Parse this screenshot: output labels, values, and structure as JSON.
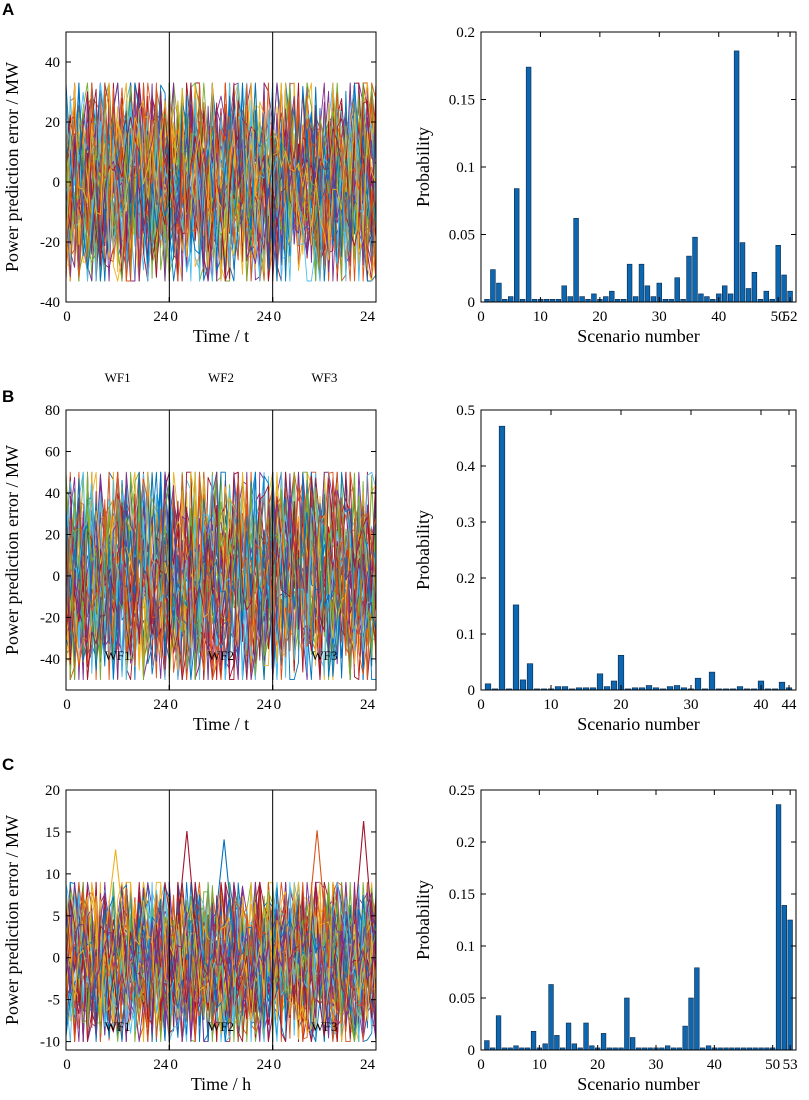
{
  "chart_data": [
    {
      "id": "A-left",
      "panel": "A",
      "type": "line",
      "title": "",
      "xlabel": "Time / t",
      "ylabel": "Power prediction error / MW",
      "ylim": [
        -40,
        50
      ],
      "yticks": [
        -40,
        -20,
        0,
        20,
        40
      ],
      "ytick_labels": [
        "-40",
        "-20",
        "0",
        "20",
        "40"
      ],
      "segment_labels": [
        "WF1",
        "WF2",
        "WF3"
      ],
      "x_tick_labels": [
        "0",
        "24",
        "0",
        "24",
        "0",
        "24"
      ],
      "series_summary": {
        "count": 52,
        "points_per_segment": 25,
        "approx_range": [
          -33,
          33
        ]
      }
    },
    {
      "id": "A-right",
      "panel": "A",
      "type": "bar",
      "title": "",
      "xlabel": "Scenario number",
      "ylabel": "Probability",
      "xlim": [
        0,
        53
      ],
      "ylim": [
        0,
        0.2
      ],
      "yticks": [
        0,
        0.05,
        0.1,
        0.15,
        0.2
      ],
      "ytick_labels": [
        "0",
        "0.05",
        "0.1",
        "0.15",
        "0.2"
      ],
      "xticks": [
        0,
        10,
        20,
        30,
        40,
        50,
        52
      ],
      "xtick_labels": [
        "0",
        "10",
        "20",
        "30",
        "40",
        "50",
        "52"
      ],
      "values": [
        0.002,
        0.024,
        0.014,
        0.002,
        0.004,
        0.084,
        0.002,
        0.174,
        0.002,
        0.002,
        0.002,
        0.002,
        0.002,
        0.012,
        0.004,
        0.062,
        0.004,
        0.002,
        0.006,
        0.002,
        0.004,
        0.008,
        0.002,
        0.002,
        0.028,
        0.004,
        0.028,
        0.012,
        0.004,
        0.014,
        0.002,
        0.002,
        0.018,
        0.002,
        0.034,
        0.048,
        0.006,
        0.004,
        0.002,
        0.006,
        0.012,
        0.006,
        0.186,
        0.044,
        0.01,
        0.022,
        0.002,
        0.008,
        0.002,
        0.042,
        0.02,
        0.008
      ]
    },
    {
      "id": "B-left",
      "panel": "B",
      "type": "line",
      "title": "",
      "xlabel": "Time / t",
      "ylabel": "Power prediction error / MW",
      "ylim": [
        -55,
        80
      ],
      "yticks": [
        -40,
        -20,
        0,
        20,
        40,
        60,
        80
      ],
      "ytick_labels": [
        "-40",
        "-20",
        "0",
        "20",
        "40",
        "60",
        "80"
      ],
      "segment_labels": [
        "WF1",
        "WF2",
        "WF3"
      ],
      "x_tick_labels": [
        "0",
        "24",
        "0",
        "24",
        "0",
        "24"
      ],
      "series_summary": {
        "count": 44,
        "points_per_segment": 25,
        "approx_range": [
          -50,
          50
        ]
      }
    },
    {
      "id": "B-right",
      "panel": "B",
      "type": "bar",
      "title": "",
      "xlabel": "Scenario number",
      "ylabel": "Probability",
      "xlim": [
        0,
        45
      ],
      "ylim": [
        0,
        0.5
      ],
      "yticks": [
        0,
        0.1,
        0.2,
        0.3,
        0.4,
        0.5
      ],
      "ytick_labels": [
        "0",
        "0.1",
        "0.2",
        "0.3",
        "0.4",
        "0.5"
      ],
      "xticks": [
        0,
        10,
        20,
        30,
        40,
        44
      ],
      "xtick_labels": [
        "0",
        "10",
        "20",
        "30",
        "40",
        "44"
      ],
      "values": [
        0.011,
        0.002,
        0.471,
        0.002,
        0.152,
        0.018,
        0.047,
        0.002,
        0.002,
        0.002,
        0.006,
        0.006,
        0.002,
        0.004,
        0.004,
        0.004,
        0.029,
        0.006,
        0.016,
        0.062,
        0.002,
        0.004,
        0.004,
        0.008,
        0.004,
        0.002,
        0.006,
        0.008,
        0.004,
        0.002,
        0.021,
        0.002,
        0.032,
        0.002,
        0.002,
        0.002,
        0.006,
        0.002,
        0.002,
        0.016,
        0.002,
        0.002,
        0.014,
        0.004
      ]
    },
    {
      "id": "C-left",
      "panel": "C",
      "type": "line",
      "title": "",
      "xlabel": "Time / h",
      "ylabel": "Power prediction error / MW",
      "ylim": [
        -11,
        20
      ],
      "yticks": [
        -10,
        -5,
        0,
        5,
        10,
        15,
        20
      ],
      "ytick_labels": [
        "-10",
        "-5",
        "0",
        "5",
        "10",
        "15",
        "20"
      ],
      "segment_labels": [
        "WF1",
        "WF2",
        "WF3"
      ],
      "x_tick_labels": [
        "0",
        "24",
        "0",
        "24",
        "0",
        "24"
      ],
      "series_summary": {
        "count": 53,
        "points_per_segment": 25,
        "approx_range": [
          -10,
          9
        ],
        "spikes": [
          12.9,
          15.1,
          14.1,
          15.2,
          16.3
        ]
      }
    },
    {
      "id": "C-right",
      "panel": "C",
      "type": "bar",
      "title": "",
      "xlabel": "Scenario number",
      "ylabel": "Probability",
      "xlim": [
        0,
        54
      ],
      "ylim": [
        0,
        0.25
      ],
      "yticks": [
        0,
        0.05,
        0.1,
        0.15,
        0.2,
        0.25
      ],
      "ytick_labels": [
        "0",
        "0.05",
        "0.1",
        "0.15",
        "0.2",
        "0.25"
      ],
      "xticks": [
        0,
        10,
        20,
        30,
        40,
        50,
        53
      ],
      "xtick_labels": [
        "0",
        "10",
        "20",
        "30",
        "40",
        "50",
        "53"
      ],
      "values": [
        0.009,
        0.002,
        0.033,
        0.002,
        0.002,
        0.004,
        0.002,
        0.002,
        0.018,
        0.002,
        0.006,
        0.063,
        0.014,
        0.002,
        0.026,
        0.006,
        0.002,
        0.026,
        0.004,
        0.002,
        0.016,
        0.002,
        0.002,
        0.002,
        0.05,
        0.012,
        0.002,
        0.002,
        0.002,
        0.002,
        0.002,
        0.004,
        0.002,
        0.002,
        0.023,
        0.05,
        0.079,
        0.002,
        0.004,
        0.002,
        0.002,
        0.002,
        0.002,
        0.002,
        0.002,
        0.002,
        0.002,
        0.002,
        0.002,
        0.002,
        0.236,
        0.139,
        0.125
      ]
    }
  ],
  "panels": [
    "A",
    "B",
    "C"
  ],
  "palette": [
    "#0072BD",
    "#D95319",
    "#EDB120",
    "#7E2F8E",
    "#77AC30",
    "#4DBEEE",
    "#A2142F"
  ],
  "bar_color": "#0D67B0"
}
